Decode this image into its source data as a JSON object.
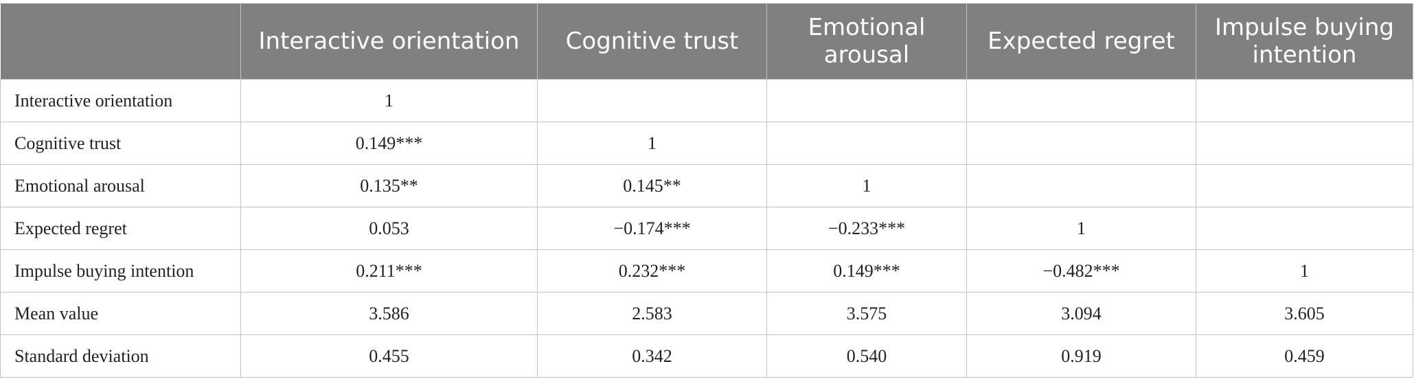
{
  "table": {
    "header": {
      "corner": "",
      "columns": [
        "Interactive orientation",
        "Cognitive trust",
        "Emotional arousal",
        "Expected regret",
        "Impulse buying intention"
      ]
    },
    "rows": [
      {
        "label": "Interactive orientation",
        "cells": [
          "1",
          "",
          "",
          "",
          ""
        ]
      },
      {
        "label": "Cognitive trust",
        "cells": [
          "0.149***",
          "1",
          "",
          "",
          ""
        ]
      },
      {
        "label": "Emotional arousal",
        "cells": [
          "0.135**",
          "0.145**",
          "1",
          "",
          ""
        ]
      },
      {
        "label": "Expected regret",
        "cells": [
          "0.053",
          "−0.174***",
          "−0.233***",
          "1",
          ""
        ]
      },
      {
        "label": "Impulse buying intention",
        "cells": [
          "0.211***",
          "0.232***",
          "0.149***",
          "−0.482***",
          "1"
        ]
      },
      {
        "label": "Mean value",
        "cells": [
          "3.586",
          "2.583",
          "3.575",
          "3.094",
          "3.605"
        ]
      },
      {
        "label": "Standard deviation",
        "cells": [
          "0.455",
          "0.342",
          "0.540",
          "0.919",
          "0.459"
        ]
      }
    ]
  }
}
